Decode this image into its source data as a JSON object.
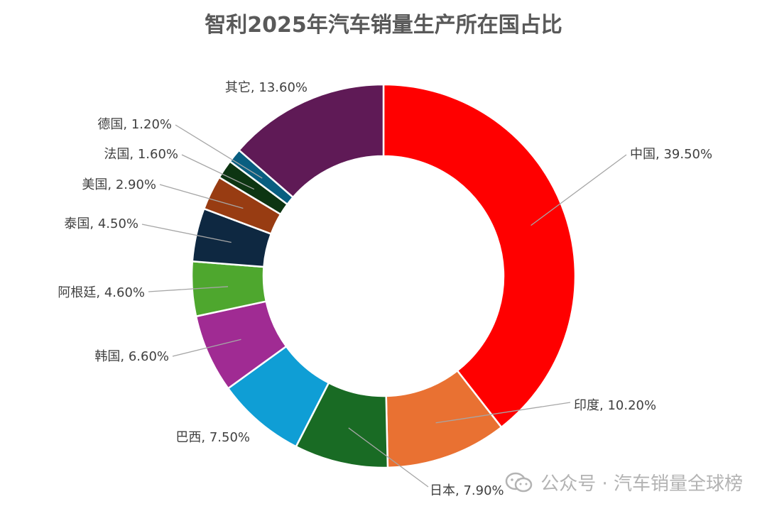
{
  "chart_data": {
    "type": "pie",
    "title": "智利2025年汽车销量生产所在国占比",
    "donut": true,
    "legend": "none",
    "slices": [
      {
        "label": "中国",
        "value": 39.5,
        "display": "39.50%",
        "color": "#FF0000"
      },
      {
        "label": "印度",
        "value": 10.2,
        "display": "10.20%",
        "color": "#E97132"
      },
      {
        "label": "日本",
        "value": 7.9,
        "display": "7.90%",
        "color": "#196B24"
      },
      {
        "label": "巴西",
        "value": 7.5,
        "display": "7.50%",
        "color": "#0F9ED5"
      },
      {
        "label": "韩国",
        "value": 6.6,
        "display": "6.60%",
        "color": "#A02B93"
      },
      {
        "label": "阿根廷",
        "value": 4.6,
        "display": "4.60%",
        "color": "#4EA72E"
      },
      {
        "label": "泰国",
        "value": 4.5,
        "display": "4.50%",
        "color": "#0E2841"
      },
      {
        "label": "美国",
        "value": 2.9,
        "display": "2.90%",
        "color": "#983C12"
      },
      {
        "label": "法国",
        "value": 1.6,
        "display": "1.60%",
        "color": "#0D3512"
      },
      {
        "label": "德国",
        "value": 1.2,
        "display": "1.20%",
        "color": "#095E80"
      },
      {
        "label": "其它",
        "value": 13.6,
        "display": "13.60%",
        "color": "#5F1A56"
      }
    ]
  },
  "watermark": {
    "text": "公众号 · 汽车销量全球榜",
    "icon": "wechat-icon"
  }
}
